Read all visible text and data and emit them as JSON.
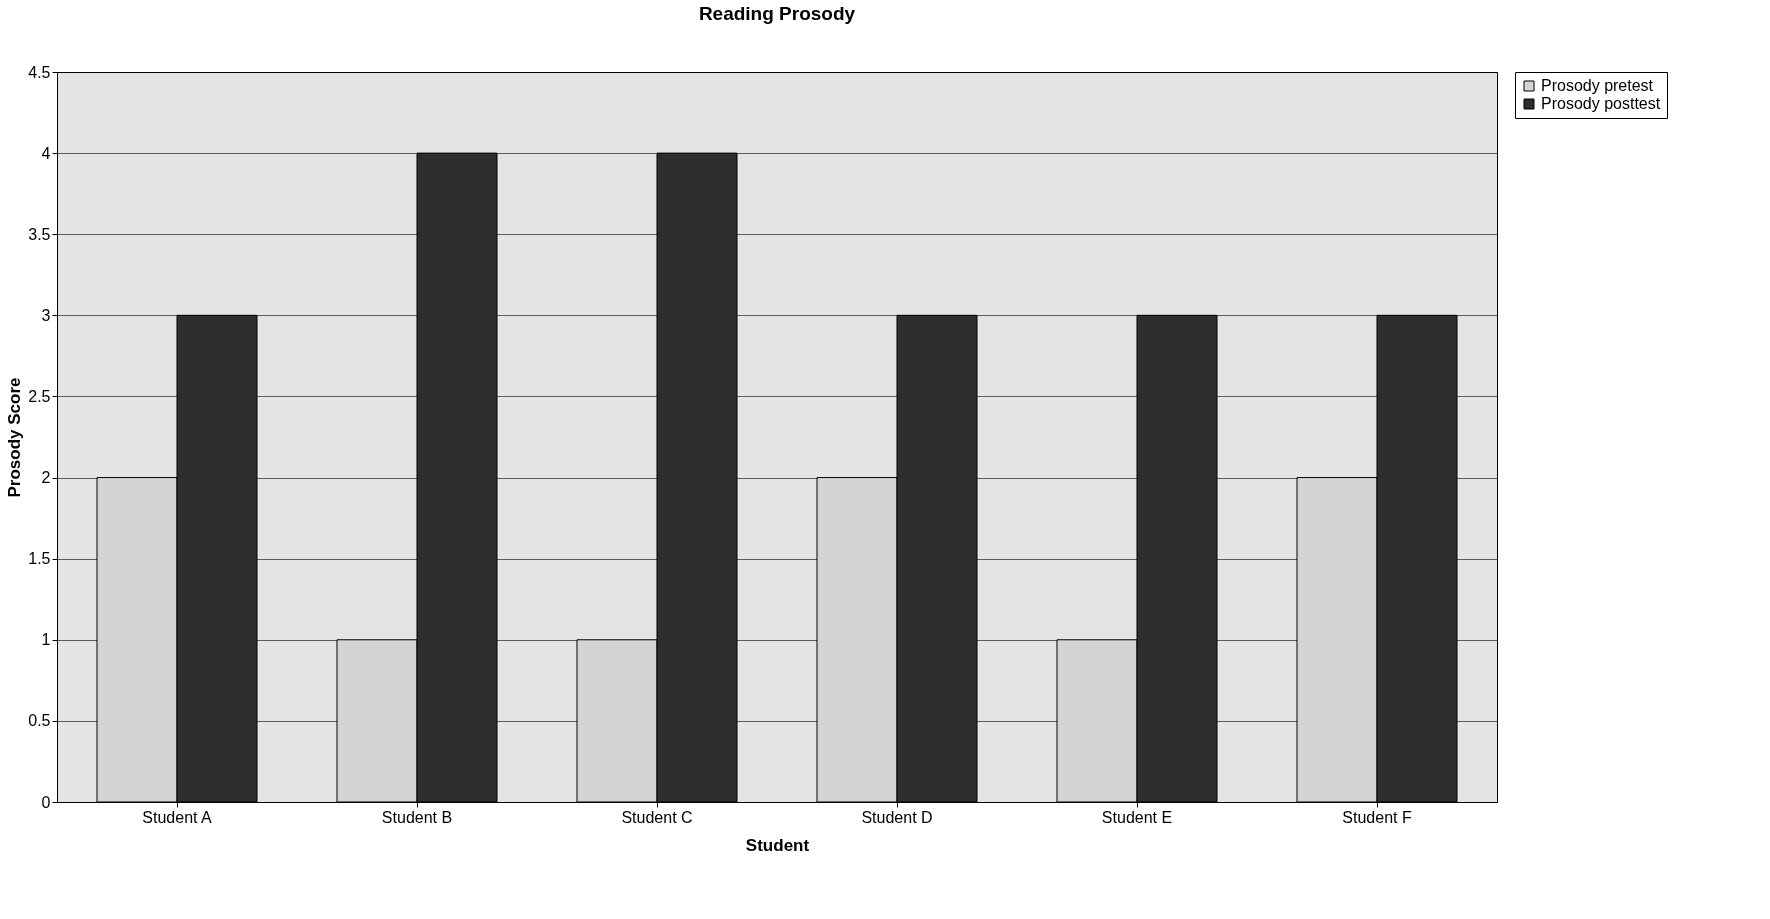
{
  "chart_data": {
    "type": "bar",
    "title": "Reading Prosody",
    "xlabel": "Student",
    "ylabel": "Prosody Score",
    "categories": [
      "Student A",
      "Student B",
      "Student C",
      "Student D",
      "Student E",
      "Student F"
    ],
    "series": [
      {
        "name": "Prosody pretest",
        "color": "#d4d4d4",
        "values": [
          2,
          1,
          1,
          2,
          1,
          2
        ]
      },
      {
        "name": "Prosody posttest",
        "color": "#2e2e2e",
        "values": [
          3,
          4,
          4,
          3,
          3,
          3
        ]
      }
    ],
    "ylim": [
      0,
      4.5
    ],
    "yticks": [
      0,
      0.5,
      1,
      1.5,
      2,
      2.5,
      3,
      3.5,
      4,
      4.5
    ],
    "grid": "y",
    "legend": "right"
  }
}
